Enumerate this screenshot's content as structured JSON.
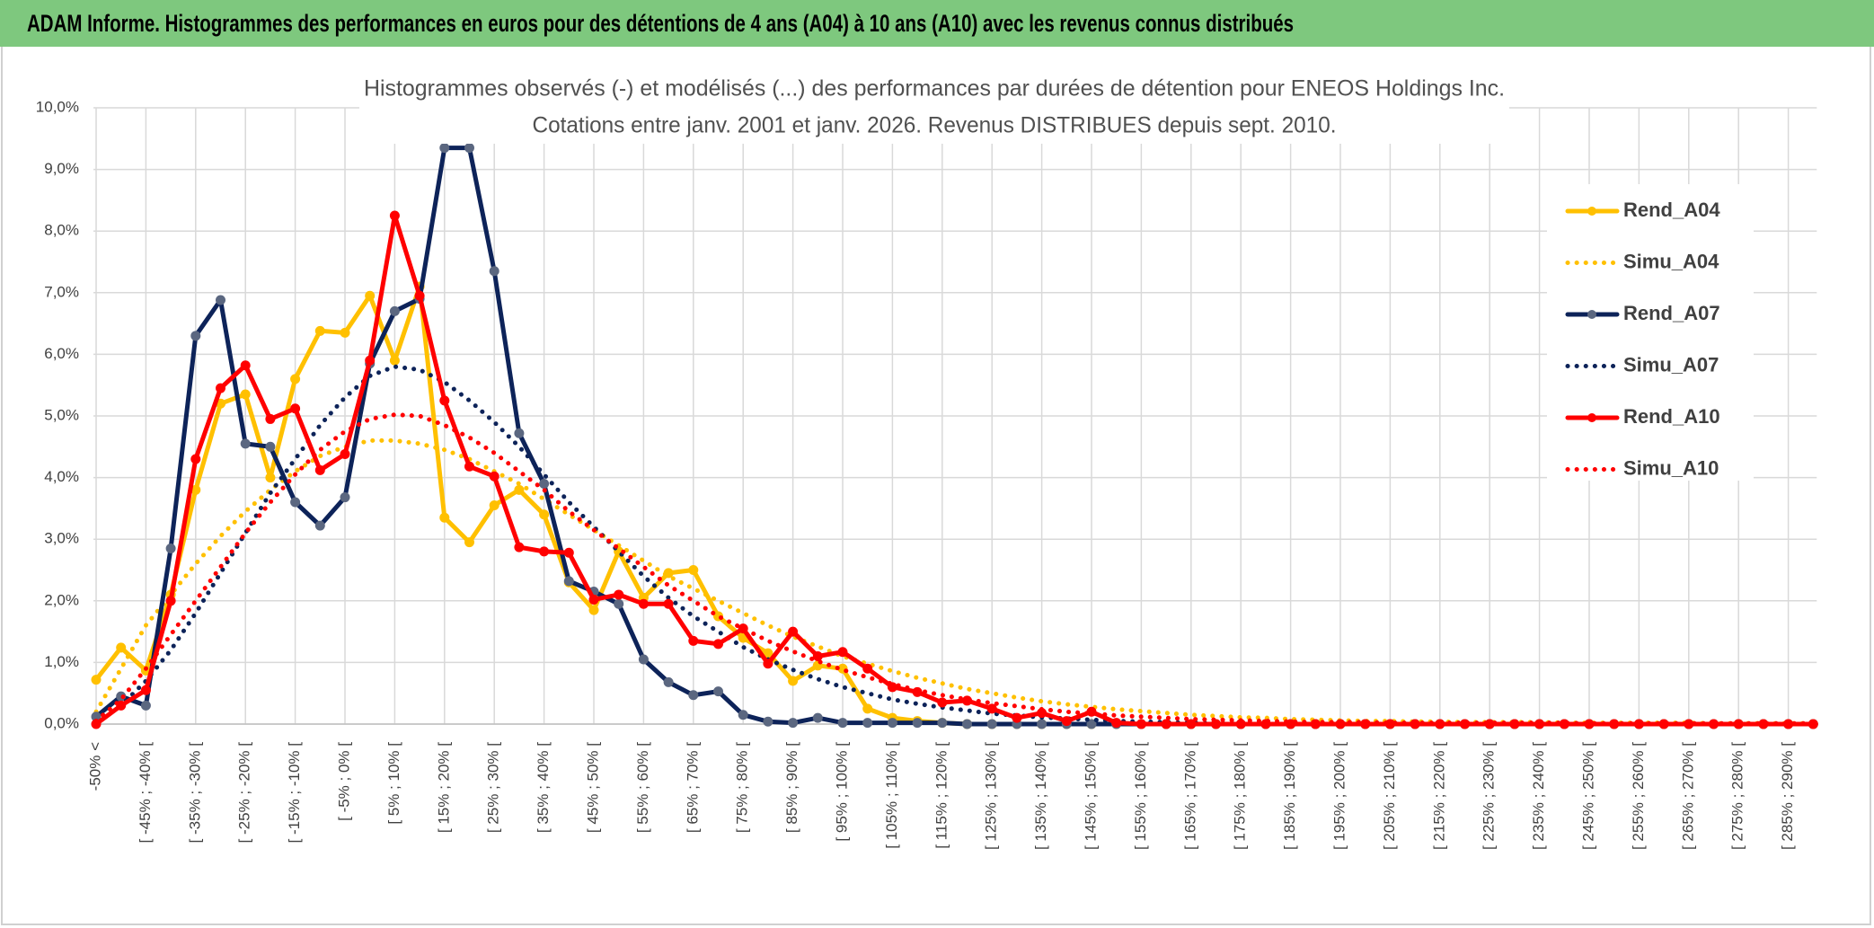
{
  "chart_data": {
    "type": "line",
    "title": "ADAM Informe. Histogrammes des performances en euros pour des détentions de 4 ans (A04) à 10 ans (A10) avec les revenus connus distribués",
    "subtitle": [
      "Histogrammes observés (-) et modélisés (...) des performances par durées de détention pour ENEOS Holdings Inc.",
      "Cotations entre janv. 2001 et janv. 2026. Revenus DISTRIBUES depuis sept. 2010."
    ],
    "categories": [
      "-50% <",
      null,
      "[ -45% ; -40% [",
      null,
      "[ -35% ; -30% [",
      null,
      "[ -25% ; -20% [",
      null,
      "[ -15% ; -10% [",
      null,
      "[ -5% ; 0% [",
      null,
      "[ 5% ; 10% [",
      null,
      "[ 15% ; 20% [",
      null,
      "[ 25% ; 30% [",
      null,
      "[ 35% ; 40% [",
      null,
      "[ 45% ; 50% [",
      null,
      "[ 55% ; 60% [",
      null,
      "[ 65% ; 70% [",
      null,
      "[ 75% ; 80% [",
      null,
      "[ 85% ; 90% [",
      null,
      "[ 95% ; 100% [",
      null,
      "[ 105% ; 110% [",
      null,
      "[ 115% ; 120% [",
      null,
      "[ 125% ; 130% [",
      null,
      "[ 135% ; 140% [",
      null,
      "[ 145% ; 150% [",
      null,
      "[ 155% ; 160% [",
      null,
      "[ 165% ; 170% [",
      null,
      "[ 175% ; 180% [",
      null,
      "[ 185% ; 190% [",
      null,
      "[ 195% ; 200% [",
      null,
      "[ 205% ; 210% [",
      null,
      "[ 215% ; 220% [",
      null,
      "[ 225% ; 230% [",
      null,
      "[ 235% ; 240% [",
      null,
      "[ 245% ; 250% [",
      null,
      "[ 255% ; 260% [",
      null,
      "[ 265% ; 270% [",
      null,
      "[ 275% ; 280% [",
      null,
      "[ 285% ; 290% [",
      null
    ],
    "ylim": [
      0,
      10
    ],
    "yticks": [
      {
        "value": 0,
        "label": "0,0%"
      },
      {
        "value": 1,
        "label": "1,0%"
      },
      {
        "value": 2,
        "label": "2,0%"
      },
      {
        "value": 3,
        "label": "3,0%"
      },
      {
        "value": 4,
        "label": "4,0%"
      },
      {
        "value": 5,
        "label": "5,0%"
      },
      {
        "value": 6,
        "label": "6,0%"
      },
      {
        "value": 7,
        "label": "7,0%"
      },
      {
        "value": 8,
        "label": "8,0%"
      },
      {
        "value": 9,
        "label": "9,0%"
      },
      {
        "value": 10,
        "label": "10,0%"
      }
    ],
    "grid": true,
    "legend": "right",
    "series": [
      {
        "name": "Rend_A04",
        "color": "#ffc000",
        "style": "solid",
        "values": [
          0.72,
          1.24,
          0.87,
          2.1,
          3.8,
          5.2,
          5.35,
          4.0,
          5.6,
          6.38,
          6.35,
          6.95,
          5.9,
          7.1,
          3.35,
          2.95,
          3.55,
          3.8,
          3.4,
          2.3,
          1.85,
          2.8,
          2.05,
          2.45,
          2.5,
          1.75,
          1.4,
          1.15,
          0.7,
          0.95,
          0.9,
          0.25,
          0.1,
          0.05,
          0.02,
          0,
          0,
          0,
          0,
          0,
          0,
          0,
          0,
          0,
          0,
          0,
          0,
          0,
          0,
          0,
          0,
          0,
          0,
          0,
          0,
          0,
          0,
          0,
          0,
          0,
          0,
          0,
          0,
          0,
          0,
          0,
          0,
          0,
          0,
          0
        ]
      },
      {
        "name": "Simu_A04",
        "color": "#ffc000",
        "style": "dotted",
        "values": [
          0.2,
          0.9,
          1.6,
          2.1,
          2.6,
          3.05,
          3.45,
          3.8,
          4.1,
          4.35,
          4.5,
          4.6,
          4.6,
          4.55,
          4.45,
          4.3,
          4.1,
          3.9,
          3.65,
          3.4,
          3.15,
          2.9,
          2.65,
          2.4,
          2.2,
          2.0,
          1.8,
          1.6,
          1.42,
          1.26,
          1.1,
          0.98,
          0.86,
          0.75,
          0.66,
          0.57,
          0.5,
          0.43,
          0.37,
          0.32,
          0.28,
          0.24,
          0.21,
          0.18,
          0.15,
          0.13,
          0.11,
          0.1,
          0.08,
          0.07,
          0.06,
          0.05,
          0.05,
          0.04,
          0.04,
          0.03,
          0.03,
          0.03,
          0.03,
          0.02,
          0.02,
          0.02,
          0.02,
          0.02,
          0.02,
          0.01,
          0.01,
          0.01,
          0.01,
          0.01
        ]
      },
      {
        "name": "Rend_A07",
        "color": "#0d2359",
        "style": "solid",
        "values": [
          0.12,
          0.45,
          0.3,
          2.85,
          6.3,
          6.88,
          4.55,
          4.5,
          3.6,
          3.22,
          3.68,
          5.85,
          6.7,
          6.9,
          9.35,
          9.35,
          7.35,
          4.72,
          3.9,
          2.32,
          2.15,
          1.95,
          1.05,
          0.68,
          0.47,
          0.53,
          0.15,
          0.04,
          0.02,
          0.1,
          0.02,
          0.02,
          0.02,
          0.02,
          0.02,
          0,
          0,
          0,
          0,
          0,
          0,
          0,
          0,
          0,
          0,
          0,
          0,
          0,
          0,
          0,
          0,
          0,
          0,
          0,
          0,
          0,
          0,
          0,
          0,
          0,
          0,
          0,
          0,
          0,
          0,
          0,
          0,
          0,
          0,
          0
        ]
      },
      {
        "name": "Simu_A07",
        "color": "#0d2359",
        "style": "dotted",
        "values": [
          0.05,
          0.3,
          0.7,
          1.2,
          1.8,
          2.45,
          3.1,
          3.75,
          4.3,
          4.85,
          5.3,
          5.65,
          5.8,
          5.75,
          5.55,
          5.25,
          4.9,
          4.5,
          4.05,
          3.6,
          3.2,
          2.8,
          2.4,
          2.05,
          1.75,
          1.5,
          1.25,
          1.05,
          0.88,
          0.73,
          0.6,
          0.5,
          0.4,
          0.33,
          0.27,
          0.22,
          0.17,
          0.14,
          0.11,
          0.09,
          0.07,
          0.05,
          0.04,
          0.03,
          0.02,
          0.01,
          0.01,
          0.01,
          0.01,
          0.01,
          0.01,
          0.01,
          0.01,
          0.01,
          0.01,
          0,
          0,
          0,
          0,
          0,
          0,
          0,
          0,
          0,
          0,
          0,
          0,
          0,
          0,
          0
        ]
      },
      {
        "name": "Rend_A10",
        "color": "#ff0000",
        "style": "solid",
        "values": [
          0,
          0.3,
          0.55,
          2.0,
          4.3,
          5.45,
          5.82,
          4.95,
          5.12,
          4.12,
          4.38,
          5.9,
          8.25,
          6.95,
          5.25,
          4.18,
          4.02,
          2.87,
          2.8,
          2.78,
          2.02,
          2.1,
          1.95,
          1.95,
          1.35,
          1.3,
          1.55,
          0.98,
          1.5,
          1.1,
          1.17,
          0.9,
          0.6,
          0.52,
          0.35,
          0.38,
          0.25,
          0.1,
          0.18,
          0.05,
          0.2,
          0.02,
          0,
          0,
          0,
          0,
          0,
          0,
          0,
          0,
          0,
          0,
          0,
          0,
          0,
          0,
          0,
          0,
          0,
          0,
          0,
          0,
          0,
          0,
          0,
          0,
          0,
          0,
          0,
          0
        ]
      },
      {
        "name": "Simu_A10",
        "color": "#ff0000",
        "style": "dotted",
        "values": [
          0.05,
          0.4,
          0.9,
          1.45,
          2.0,
          2.55,
          3.1,
          3.6,
          4.05,
          4.45,
          4.75,
          4.95,
          5.02,
          5.0,
          4.85,
          4.65,
          4.4,
          4.1,
          3.8,
          3.45,
          3.15,
          2.85,
          2.55,
          2.25,
          2.0,
          1.75,
          1.55,
          1.35,
          1.18,
          1.02,
          0.88,
          0.76,
          0.65,
          0.55,
          0.47,
          0.4,
          0.34,
          0.29,
          0.24,
          0.2,
          0.17,
          0.14,
          0.12,
          0.1,
          0.08,
          0.07,
          0.06,
          0.05,
          0.04,
          0.03,
          0.03,
          0.03,
          0.02,
          0.02,
          0.02,
          0.02,
          0.02,
          0.02,
          0.02,
          0.02,
          0.01,
          0.01,
          0.01,
          0.01,
          0.01,
          0.01,
          0.01,
          0.01,
          0.01,
          0.01
        ]
      }
    ]
  }
}
